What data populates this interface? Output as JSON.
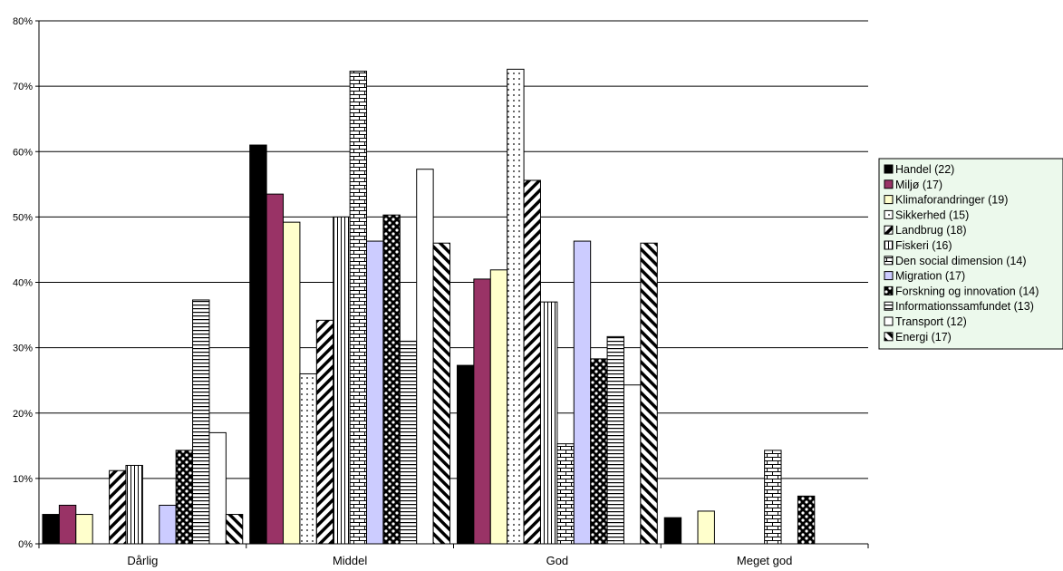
{
  "chart_data": {
    "type": "bar",
    "categories": [
      "Dårlig",
      "Middel",
      "God",
      "Meget god"
    ],
    "y_ticks": [
      "0%",
      "10%",
      "20%",
      "30%",
      "40%",
      "50%",
      "60%",
      "70%",
      "80%"
    ],
    "ylim": [
      0,
      80
    ],
    "grid": true,
    "legend_position": "right",
    "series": [
      {
        "name": "Handel (22)",
        "values": [
          4.5,
          61.0,
          27.3,
          4.0
        ],
        "color": "#000000",
        "pattern": "solid"
      },
      {
        "name": "Miljø (17)",
        "values": [
          5.9,
          53.5,
          40.5,
          0
        ],
        "color": "#993366",
        "pattern": "solid"
      },
      {
        "name": "Klimaforandringer (19)",
        "values": [
          4.5,
          49.2,
          41.9,
          5.0
        ],
        "color": "#FFFFCC",
        "pattern": "solid"
      },
      {
        "name": "Sikkerhed (15)",
        "values": [
          0,
          26.0,
          72.6,
          0
        ],
        "color": "#ffffff",
        "pattern": "dots"
      },
      {
        "name": "Landbrug (18)",
        "values": [
          11.2,
          34.2,
          55.6,
          0
        ],
        "color": "#ffffff",
        "pattern": "diagonal-up"
      },
      {
        "name": "Fiskeri (16)",
        "values": [
          12.0,
          50.0,
          37.0,
          0
        ],
        "color": "#ffffff",
        "pattern": "vertical"
      },
      {
        "name": "Den social dimension (14)",
        "values": [
          0,
          72.3,
          15.3,
          14.3
        ],
        "color": "#ffffff",
        "pattern": "brick"
      },
      {
        "name": "Migration (17)",
        "values": [
          5.9,
          46.3,
          46.3,
          0
        ],
        "color": "#CCCCFF",
        "pattern": "solid"
      },
      {
        "name": "Forskning og innovation (14)",
        "values": [
          14.3,
          50.3,
          28.3,
          7.3
        ],
        "color": "#ffffff",
        "pattern": "checker"
      },
      {
        "name": "Informationssamfundet (13)",
        "values": [
          37.3,
          31.0,
          31.7,
          0
        ],
        "color": "#ffffff",
        "pattern": "horizontal"
      },
      {
        "name": "Transport (12)",
        "values": [
          17.0,
          57.3,
          24.3,
          0
        ],
        "color": "#ffffff",
        "pattern": "solid"
      },
      {
        "name": "Energi (17)",
        "values": [
          4.5,
          46.0,
          46.0,
          0
        ],
        "color": "#ffffff",
        "pattern": "diagonal-down"
      }
    ]
  }
}
